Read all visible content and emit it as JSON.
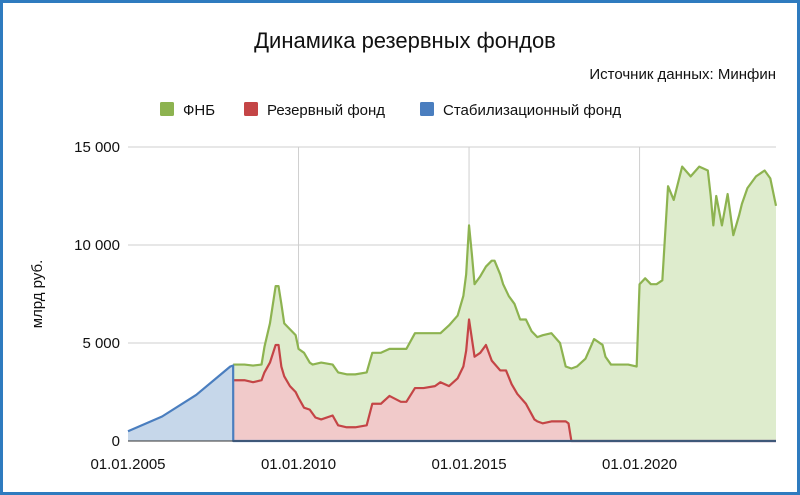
{
  "chart_data": {
    "type": "area",
    "title": "Динамика резервных фондов",
    "source_note": "Источник данных: Минфин",
    "ylabel": "млрд руб.",
    "xlabel": "",
    "ylim": [
      0,
      15000
    ],
    "xlim": [
      "2005-01-01",
      "2024-01-01"
    ],
    "grid": true,
    "legend_position": "top",
    "y_ticks": [
      "0",
      "5 000",
      "10 000",
      "15 000"
    ],
    "y_tick_values": [
      0,
      5000,
      10000,
      15000
    ],
    "x_ticks": [
      "01.01.2005",
      "01.01.2010",
      "01.01.2015",
      "01.01.2020"
    ],
    "x_tick_values": [
      "2005-01-01",
      "2010-01-01",
      "2015-01-01",
      "2020-01-01"
    ],
    "series": [
      {
        "name": "ФНБ",
        "color": "#8db350",
        "fill": "#deeccd",
        "x": [
          "2008-02-01",
          "2008-06-01",
          "2008-09-01",
          "2008-12-01",
          "2009-01-01",
          "2009-03-01",
          "2009-05-01",
          "2009-06-01",
          "2009-07-01",
          "2009-08-01",
          "2009-10-01",
          "2009-12-01",
          "2010-01-01",
          "2010-03-01",
          "2010-05-01",
          "2010-06-01",
          "2010-09-01",
          "2011-01-01",
          "2011-03-01",
          "2011-06-01",
          "2011-09-01",
          "2012-01-01",
          "2012-03-01",
          "2012-06-01",
          "2012-09-01",
          "2013-01-01",
          "2013-03-01",
          "2013-06-01",
          "2013-09-01",
          "2014-01-01",
          "2014-03-01",
          "2014-06-01",
          "2014-09-01",
          "2014-11-01",
          "2014-12-01",
          "2015-01-01",
          "2015-02-01",
          "2015-03-01",
          "2015-05-01",
          "2015-07-01",
          "2015-09-01",
          "2015-10-01",
          "2015-12-01",
          "2016-01-01",
          "2016-03-01",
          "2016-05-01",
          "2016-07-01",
          "2016-09-01",
          "2016-11-01",
          "2017-01-01",
          "2017-03-01",
          "2017-06-01",
          "2017-09-01",
          "2017-11-01",
          "2018-01-01",
          "2018-03-01",
          "2018-06-01",
          "2018-09-01",
          "2018-12-01",
          "2019-01-01",
          "2019-03-01",
          "2019-06-01",
          "2019-09-01",
          "2019-12-01",
          "2020-01-01",
          "2020-03-01",
          "2020-05-01",
          "2020-07-01",
          "2020-09-01",
          "2020-11-01",
          "2021-01-01",
          "2021-04-01",
          "2021-07-01",
          "2021-10-01",
          "2022-01-01",
          "2022-02-01",
          "2022-03-01",
          "2022-04-01",
          "2022-06-01",
          "2022-08-01",
          "2022-10-01",
          "2022-12-01",
          "2023-01-01",
          "2023-03-01",
          "2023-06-01",
          "2023-09-01",
          "2023-11-01",
          "2024-01-01"
        ],
        "values": [
          3900,
          3900,
          3850,
          3900,
          4800,
          6000,
          7900,
          7900,
          7000,
          6000,
          5700,
          5400,
          4700,
          4500,
          4000,
          3900,
          4000,
          3900,
          3500,
          3400,
          3400,
          3500,
          4500,
          4500,
          4700,
          4700,
          4700,
          5500,
          5500,
          5500,
          5500,
          5900,
          6400,
          7400,
          8500,
          11000,
          9500,
          8000,
          8400,
          8900,
          9200,
          9200,
          8500,
          8000,
          7400,
          7000,
          6200,
          6200,
          5600,
          5300,
          5400,
          5500,
          5000,
          3800,
          3700,
          3800,
          4200,
          5200,
          4900,
          4300,
          3900,
          3900,
          3900,
          3800,
          8000,
          8300,
          8000,
          8000,
          8200,
          13000,
          12300,
          14000,
          13500,
          14000,
          13800,
          12500,
          11000,
          12500,
          11000,
          12600,
          10500,
          11500,
          12100,
          12900,
          13500,
          13800,
          13400,
          12000
        ]
      },
      {
        "name": "Резервный фонд",
        "color": "#c44546",
        "fill": "#f1caca",
        "x": [
          "2008-02-01",
          "2008-06-01",
          "2008-09-01",
          "2008-12-01",
          "2009-01-01",
          "2009-03-01",
          "2009-05-01",
          "2009-06-01",
          "2009-07-01",
          "2009-08-01",
          "2009-10-01",
          "2009-12-01",
          "2010-01-01",
          "2010-03-01",
          "2010-05-01",
          "2010-07-01",
          "2010-09-01",
          "2011-01-01",
          "2011-03-01",
          "2011-06-01",
          "2011-09-01",
          "2012-01-01",
          "2012-03-01",
          "2012-06-01",
          "2012-09-01",
          "2013-01-01",
          "2013-03-01",
          "2013-06-01",
          "2013-09-01",
          "2014-01-01",
          "2014-03-01",
          "2014-06-01",
          "2014-09-01",
          "2014-11-01",
          "2014-12-01",
          "2015-01-01",
          "2015-03-01",
          "2015-05-01",
          "2015-07-01",
          "2015-09-01",
          "2015-12-01",
          "2016-02-01",
          "2016-04-01",
          "2016-06-01",
          "2016-09-01",
          "2016-12-01",
          "2017-01-01",
          "2017-03-01",
          "2017-06-01",
          "2017-09-01",
          "2017-11-01",
          "2017-12-01",
          "2018-01-01",
          "2018-02-01",
          "2024-01-01"
        ],
        "values": [
          3100,
          3100,
          3000,
          3100,
          3500,
          4000,
          4900,
          4900,
          3800,
          3300,
          2800,
          2500,
          2200,
          1700,
          1600,
          1200,
          1100,
          1300,
          800,
          700,
          700,
          800,
          1900,
          1900,
          2300,
          2000,
          2000,
          2700,
          2700,
          2800,
          3000,
          2800,
          3200,
          3800,
          4600,
          6200,
          4300,
          4500,
          4900,
          4100,
          3600,
          3600,
          2900,
          2400,
          1900,
          1100,
          1000,
          900,
          1000,
          1000,
          1000,
          900,
          0,
          0,
          0
        ]
      },
      {
        "name": "Стабилизационный фонд",
        "color": "#4a7ebf",
        "fill": "#c6d7ea",
        "x": [
          "2005-01-01",
          "2006-01-01",
          "2007-01-01",
          "2008-01-01",
          "2008-02-01",
          "2008-02-02",
          "2024-01-01"
        ],
        "values": [
          500,
          1250,
          2350,
          3800,
          3850,
          0,
          0
        ]
      }
    ]
  }
}
